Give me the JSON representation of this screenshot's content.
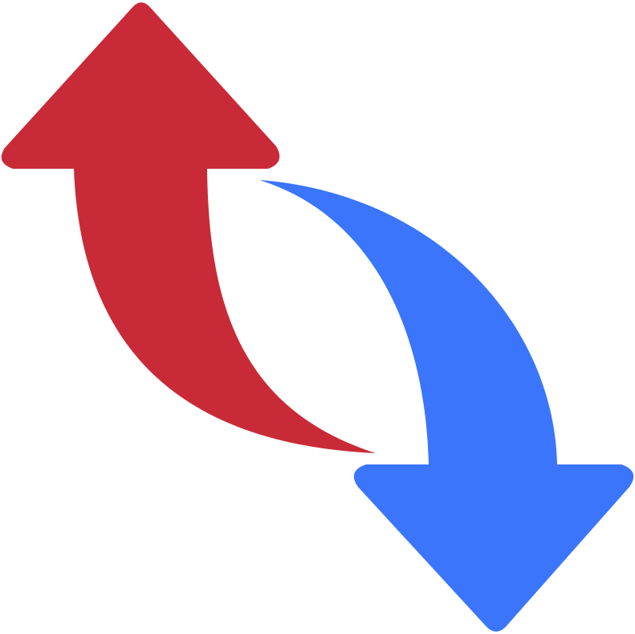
{
  "icon": {
    "name": "exchange-arrows-icon",
    "arrows": [
      {
        "name": "up-arrow",
        "direction": "up",
        "color": "#c92a37"
      },
      {
        "name": "down-arrow",
        "direction": "down",
        "color": "#3a75fb"
      }
    ]
  }
}
